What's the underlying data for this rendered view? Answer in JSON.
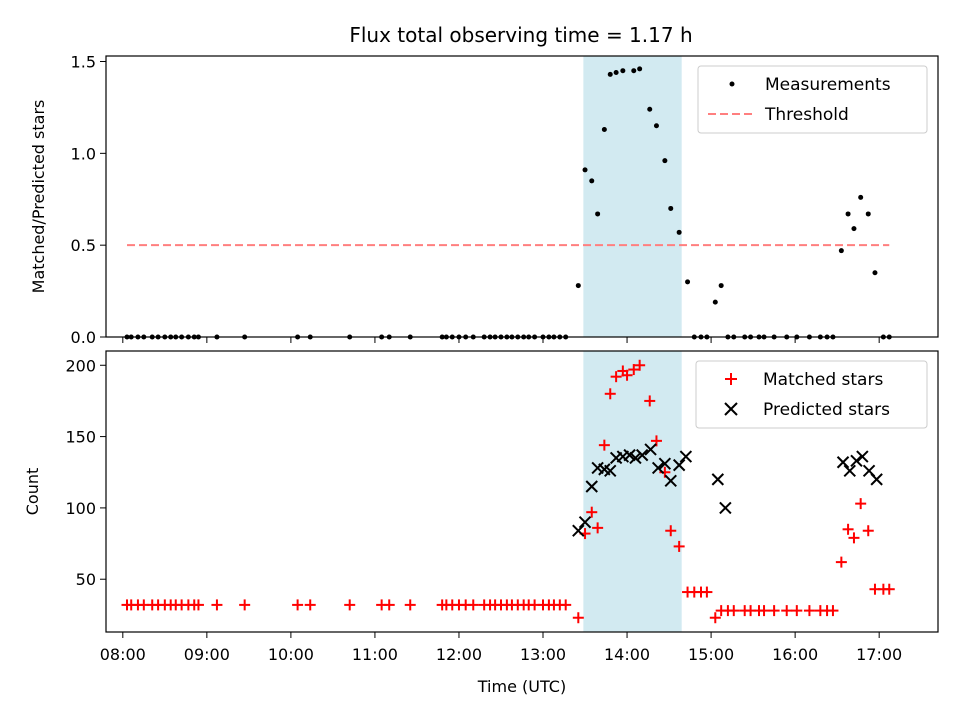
{
  "chart_data": {
    "title": "Flux total observing time = 1.17 h",
    "xlabel": "Time (UTC)",
    "x_tick_labels": [
      "08:00",
      "09:00",
      "10:00",
      "11:00",
      "12:00",
      "13:00",
      "14:00",
      "15:00",
      "16:00",
      "17:00"
    ],
    "x_ticks_hours": [
      8,
      9,
      10,
      11,
      12,
      13,
      14,
      15,
      16,
      17
    ],
    "xlim_hours": [
      7.8,
      17.7
    ],
    "highlight_span_hours": [
      13.48,
      14.65
    ],
    "highlight_color": "#add8e6",
    "panels": [
      {
        "type": "scatter",
        "ylabel": "Matched/Predicted stars",
        "ylim": [
          0,
          1.53
        ],
        "y_ticks": [
          0.0,
          0.5,
          1.0,
          1.5
        ],
        "y_tick_labels": [
          "0.0",
          "0.5",
          "1.0",
          "1.5"
        ],
        "legend_position": "top-right",
        "series": [
          {
            "name": "Measurements",
            "marker": "dot",
            "color": "#000000",
            "x": [
              8.05,
              8.1,
              8.18,
              8.25,
              8.35,
              8.42,
              8.5,
              8.57,
              8.63,
              8.7,
              8.78,
              8.85,
              8.9,
              9.12,
              9.45,
              10.08,
              10.23,
              10.7,
              11.08,
              11.17,
              11.42,
              11.8,
              11.85,
              11.92,
              12.0,
              12.08,
              12.17,
              12.3,
              12.37,
              12.43,
              12.5,
              12.57,
              12.63,
              12.7,
              12.77,
              12.83,
              12.9,
              13.0,
              13.07,
              13.13,
              13.2,
              13.27,
              13.42,
              13.5,
              13.58,
              13.65,
              13.73,
              13.8,
              13.87,
              13.95,
              14.08,
              14.15,
              14.27,
              14.35,
              14.45,
              14.52,
              14.62,
              14.72,
              14.8,
              14.88,
              14.95,
              15.05,
              15.12,
              15.2,
              15.27,
              15.4,
              15.47,
              15.57,
              15.63,
              15.75,
              15.9,
              16.02,
              16.17,
              16.3,
              16.38,
              16.45,
              16.55,
              16.63,
              16.7,
              16.78,
              16.87,
              16.95,
              17.05,
              17.12
            ],
            "y": [
              0,
              0,
              0,
              0,
              0,
              0,
              0,
              0,
              0,
              0,
              0,
              0,
              0,
              0,
              0,
              0,
              0,
              0,
              0,
              0,
              0,
              0,
              0,
              0,
              0,
              0,
              0,
              0,
              0,
              0,
              0,
              0,
              0,
              0,
              0,
              0,
              0,
              0,
              0,
              0,
              0,
              0,
              0.28,
              0.91,
              0.85,
              0.67,
              1.13,
              1.43,
              1.44,
              1.45,
              1.45,
              1.46,
              1.24,
              1.15,
              0.96,
              0.7,
              0.57,
              0.3,
              0,
              0,
              0,
              0.19,
              0.28,
              0,
              0,
              0,
              0,
              0,
              0,
              0,
              0,
              0,
              0,
              0,
              0,
              0,
              0.47,
              0.67,
              0.59,
              0.76,
              0.67,
              0.35,
              0,
              0
            ]
          },
          {
            "name": "Threshold",
            "marker": "dashed-line",
            "color": "#ff7f7f",
            "x": [
              8.05,
              17.12
            ],
            "y": [
              0.5,
              0.5
            ]
          }
        ]
      },
      {
        "type": "scatter",
        "ylabel": "Count",
        "ylim": [
          13,
          210
        ],
        "y_ticks": [
          50,
          100,
          150,
          200
        ],
        "y_tick_labels": [
          "50",
          "100",
          "150",
          "200"
        ],
        "legend_position": "top-right",
        "series": [
          {
            "name": "Matched stars",
            "marker": "plus",
            "color": "#ff0000",
            "x": [
              8.05,
              8.1,
              8.18,
              8.25,
              8.35,
              8.42,
              8.5,
              8.57,
              8.63,
              8.7,
              8.78,
              8.85,
              8.9,
              9.12,
              9.45,
              10.08,
              10.23,
              10.7,
              11.08,
              11.17,
              11.42,
              11.8,
              11.85,
              11.92,
              12.0,
              12.08,
              12.17,
              12.3,
              12.37,
              12.43,
              12.5,
              12.57,
              12.63,
              12.7,
              12.77,
              12.83,
              12.9,
              13.0,
              13.07,
              13.13,
              13.2,
              13.27,
              13.42,
              13.5,
              13.58,
              13.65,
              13.73,
              13.8,
              13.87,
              13.95,
              14.0,
              14.08,
              14.15,
              14.27,
              14.35,
              14.45,
              14.52,
              14.62,
              14.72,
              14.8,
              14.88,
              14.95,
              15.05,
              15.12,
              15.2,
              15.27,
              15.4,
              15.47,
              15.57,
              15.63,
              15.75,
              15.9,
              16.02,
              16.17,
              16.3,
              16.38,
              16.45,
              16.55,
              16.63,
              16.7,
              16.78,
              16.87,
              16.95,
              17.05,
              17.12
            ],
            "y": [
              32,
              32,
              32,
              32,
              32,
              32,
              32,
              32,
              32,
              32,
              32,
              32,
              32,
              32,
              32,
              32,
              32,
              32,
              32,
              32,
              32,
              32,
              32,
              32,
              32,
              32,
              32,
              32,
              32,
              32,
              32,
              32,
              32,
              32,
              32,
              32,
              32,
              32,
              32,
              32,
              32,
              32,
              23,
              82,
              97,
              86,
              144,
              180,
              192,
              196,
              193,
              197,
              200,
              175,
              147,
              125,
              84,
              73,
              41,
              41,
              41,
              41,
              23,
              28,
              28,
              28,
              28,
              28,
              28,
              28,
              28,
              28,
              28,
              28,
              28,
              28,
              28,
              62,
              85,
              79,
              103,
              84,
              43,
              43,
              43
            ]
          },
          {
            "name": "Predicted stars",
            "marker": "x",
            "color": "#000000",
            "x": [
              13.42,
              13.5,
              13.58,
              13.65,
              13.73,
              13.8,
              13.87,
              13.95,
              14.03,
              14.1,
              14.18,
              14.28,
              14.37,
              14.45,
              14.52,
              14.62,
              14.7,
              15.08,
              15.17,
              16.57,
              16.65,
              16.73,
              16.8,
              16.88,
              16.97
            ],
            "y": [
              84,
              90,
              115,
              128,
              127,
              126,
              135,
              136,
              137,
              135,
              137,
              141,
              128,
              131,
              119,
              130,
              136,
              120,
              100,
              132,
              126,
              133,
              136,
              126,
              120
            ]
          }
        ]
      }
    ]
  }
}
